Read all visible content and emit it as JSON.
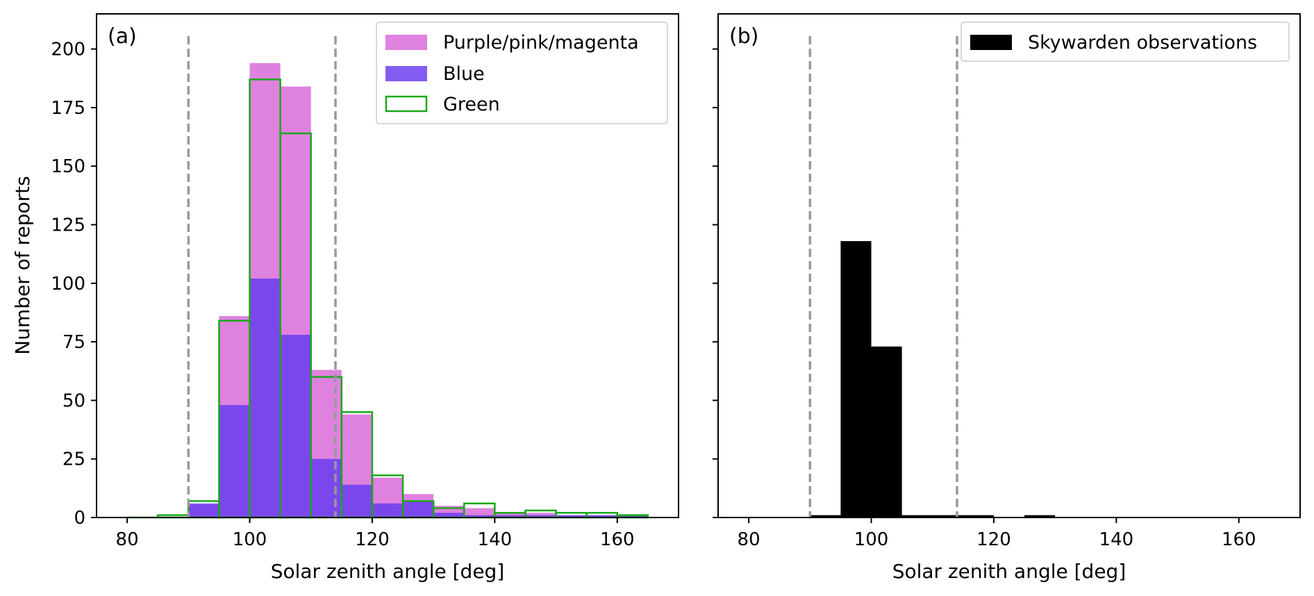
{
  "colors": {
    "purple": "#DF82DF",
    "blue": "#7040EE",
    "green": "#1AA81A",
    "black": "#000000",
    "dashed": "#999999"
  },
  "chart_data": [
    {
      "type": "bar",
      "panel_label": "(a)",
      "xlabel": "Solar zenith angle [deg]",
      "ylabel": "Number of reports",
      "xlim": [
        75,
        170
      ],
      "ylim": [
        0,
        215
      ],
      "xticks": [
        80,
        100,
        120,
        140,
        160
      ],
      "yticks": [
        0,
        25,
        50,
        75,
        100,
        125,
        150,
        175,
        200
      ],
      "bin_edges": [
        80,
        85,
        90,
        95,
        100,
        105,
        110,
        115,
        120,
        125,
        130,
        135,
        140,
        145,
        150,
        155,
        160,
        165
      ],
      "vlines": [
        90,
        114
      ],
      "legend_position": "top-right",
      "series": [
        {
          "name": "Purple/pink/magenta",
          "style": "filled",
          "values": [
            0,
            0,
            5,
            86,
            194,
            184,
            63,
            44,
            17,
            10,
            5,
            4,
            2,
            2,
            1,
            1,
            1
          ]
        },
        {
          "name": "Blue",
          "style": "filled",
          "values": [
            0,
            0,
            6,
            48,
            102,
            78,
            25,
            14,
            6,
            7,
            2,
            1,
            1,
            1,
            1,
            1,
            1
          ]
        },
        {
          "name": "Green",
          "style": "outline",
          "values": [
            0,
            1,
            7,
            84,
            187,
            164,
            60,
            45,
            18,
            7,
            4,
            6,
            2,
            3,
            2,
            2,
            1
          ]
        }
      ]
    },
    {
      "type": "bar",
      "panel_label": "(b)",
      "xlabel": "Solar zenith angle [deg]",
      "ylabel": "",
      "xlim": [
        75,
        170
      ],
      "ylim": [
        0,
        215
      ],
      "xticks": [
        80,
        100,
        120,
        140,
        160
      ],
      "yticks": [
        0,
        25,
        50,
        75,
        100,
        125,
        150,
        175,
        200
      ],
      "bin_edges": [
        80,
        85,
        90,
        95,
        100,
        105,
        110,
        115,
        120,
        125,
        130,
        135,
        140,
        145,
        150,
        155,
        160,
        165
      ],
      "vlines": [
        90,
        114
      ],
      "legend_position": "top-right",
      "series": [
        {
          "name": "Skywarden observations",
          "style": "filled",
          "values": [
            0,
            0,
            1,
            118,
            73,
            1,
            1,
            1,
            0,
            1,
            0,
            0,
            0,
            0,
            0,
            0,
            0
          ]
        }
      ]
    }
  ]
}
